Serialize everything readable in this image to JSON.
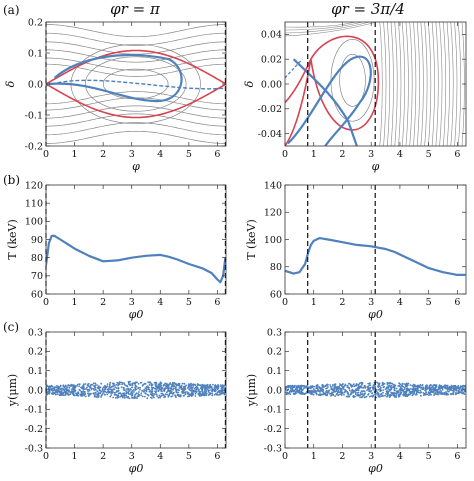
{
  "panel_labels": [
    "(a)",
    "(b)",
    "(c)"
  ],
  "column_titles": [
    "φr = π",
    "φr = 3π/4"
  ],
  "colors": {
    "blue": "#4f81bd",
    "red": "#d9434f",
    "contour": "#888888",
    "axis": "#333333"
  },
  "chart_data": [
    {
      "type": "contour",
      "panel": "a-left",
      "xlabel": "φ",
      "ylabel": "δ",
      "xlim": [
        0,
        6.3
      ],
      "ylim": [
        -0.2,
        0.2
      ],
      "xticks": [
        0,
        1,
        2,
        3,
        4,
        5,
        6
      ],
      "yticks": [
        -0.2,
        -0.1,
        0.0,
        0.1,
        0.2
      ],
      "ytick_labels": [
        "-0.2",
        "-0.1",
        "0.0",
        "0.1",
        "0.2"
      ],
      "vlines_dashed": [
        0,
        6.28
      ]
    },
    {
      "type": "contour",
      "panel": "a-right",
      "xlabel": "φ",
      "ylabel": "δ",
      "xlim": [
        0,
        6.3
      ],
      "ylim": [
        -0.05,
        0.05
      ],
      "xticks": [
        0,
        1,
        2,
        3,
        4,
        5,
        6
      ],
      "yticks": [
        -0.04,
        -0.02,
        0.0,
        0.02,
        0.04
      ],
      "ytick_labels": [
        "-0.04",
        "-0.02",
        "0.00",
        "0.02",
        "0.04"
      ],
      "vlines_dashed": [
        0.79,
        3.14
      ]
    },
    {
      "type": "line",
      "panel": "b-left",
      "xlabel": "φ0",
      "ylabel": "T (keV)",
      "xlim": [
        0,
        6.3
      ],
      "ylim": [
        60,
        120
      ],
      "xticks": [
        0,
        1,
        2,
        3,
        4,
        5,
        6
      ],
      "yticks": [
        60,
        70,
        80,
        90,
        100,
        110,
        120
      ],
      "x": [
        0.0,
        0.1,
        0.2,
        0.3,
        0.5,
        0.8,
        1.0,
        1.5,
        2.0,
        2.5,
        3.0,
        3.5,
        4.0,
        4.3,
        4.6,
        5.0,
        5.5,
        5.8,
        6.0,
        6.1,
        6.2,
        6.28
      ],
      "y": [
        76,
        88,
        92,
        92,
        90,
        87,
        85,
        81,
        78,
        78.5,
        80,
        81,
        81.5,
        80.5,
        79,
        76.5,
        74,
        71.5,
        68,
        66.5,
        70,
        80
      ],
      "vlines_dashed": [
        0,
        6.28
      ]
    },
    {
      "type": "line",
      "panel": "b-right",
      "xlabel": "φ0",
      "ylabel": "T (keV)",
      "xlim": [
        0,
        6.3
      ],
      "ylim": [
        60,
        140
      ],
      "xticks": [
        0,
        1,
        2,
        3,
        4,
        5,
        6
      ],
      "yticks": [
        60,
        80,
        100,
        120,
        140
      ],
      "x": [
        0.0,
        0.3,
        0.5,
        0.7,
        0.8,
        0.9,
        1.0,
        1.2,
        1.5,
        2.0,
        2.5,
        3.0,
        3.5,
        3.8,
        4.0,
        4.5,
        5.0,
        5.5,
        6.0,
        6.28
      ],
      "y": [
        77,
        75,
        76,
        82,
        90,
        96,
        99,
        101,
        100,
        98,
        96,
        95,
        93,
        91,
        89,
        84,
        79,
        76,
        74,
        74
      ],
      "vlines_dashed": [
        0.79,
        3.14
      ]
    },
    {
      "type": "scatter",
      "panel": "c-left",
      "xlabel": "φ0",
      "ylabel": "y(μm)",
      "xlim": [
        0,
        6.3
      ],
      "ylim": [
        -0.3,
        0.3
      ],
      "xticks": [
        0,
        1,
        2,
        3,
        4,
        5,
        6
      ],
      "yticks": [
        -0.3,
        -0.2,
        -0.1,
        0.0,
        0.1,
        0.2,
        0.3
      ],
      "ytick_labels": [
        "-0.3",
        "-0.2",
        "-0.1",
        "0.0",
        "0.1",
        "0.2",
        "0.3"
      ],
      "band_x": [
        0.0,
        0.5,
        1.0,
        1.5,
        2.0,
        2.5,
        3.0,
        3.5,
        4.0,
        4.5,
        5.0,
        5.5,
        6.0,
        6.28
      ],
      "band_halfwidth": [
        0.025,
        0.027,
        0.03,
        0.035,
        0.039,
        0.042,
        0.044,
        0.043,
        0.041,
        0.038,
        0.034,
        0.03,
        0.027,
        0.025
      ],
      "vlines_dashed": [
        0,
        6.28
      ]
    },
    {
      "type": "scatter",
      "panel": "c-right",
      "xlabel": "φ0",
      "ylabel": "y(μm)",
      "xlim": [
        0,
        6.3
      ],
      "ylim": [
        -0.3,
        0.3
      ],
      "xticks": [
        0,
        1,
        2,
        3,
        4,
        5,
        6
      ],
      "yticks": [
        -0.3,
        -0.2,
        -0.1,
        0.0,
        0.1,
        0.2,
        0.3
      ],
      "ytick_labels": [
        "-0.3",
        "-0.2",
        "-0.1",
        "0.0",
        "0.1",
        "0.2",
        "0.3"
      ],
      "band_x": [
        0.0,
        0.5,
        1.0,
        1.5,
        2.0,
        2.5,
        3.0,
        3.5,
        4.0,
        4.5,
        5.0,
        5.5,
        6.0,
        6.28
      ],
      "band_halfwidth": [
        0.022,
        0.024,
        0.026,
        0.03,
        0.034,
        0.038,
        0.04,
        0.039,
        0.036,
        0.032,
        0.028,
        0.025,
        0.023,
        0.022
      ],
      "vlines_dashed": [
        0.79,
        3.14
      ]
    }
  ]
}
